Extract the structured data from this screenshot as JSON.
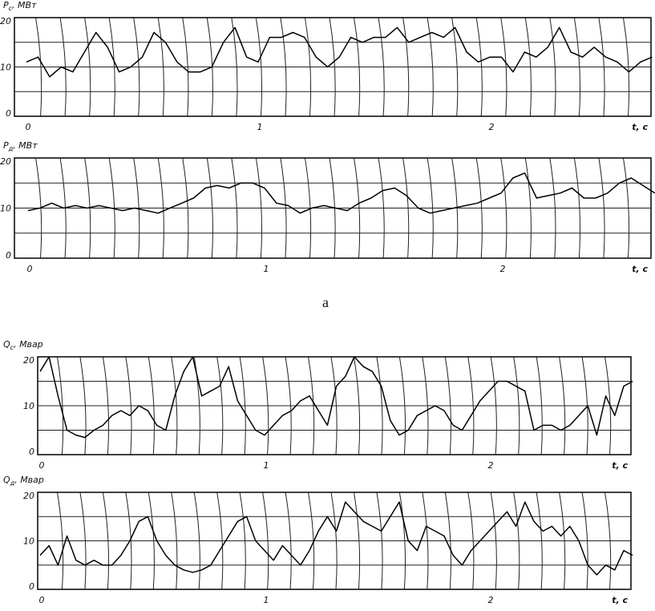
{
  "caption": "а",
  "chart_data": [
    {
      "type": "line",
      "ylabel": "P_c, МВт",
      "ylabel_main": "P",
      "ylabel_sub": "c",
      "ylabel_unit": ", МВт",
      "xlabel": "t, c",
      "yticks": [
        "0",
        "10",
        "20"
      ],
      "xticks": [
        "0",
        "1",
        "2"
      ],
      "ylim": [
        0,
        20
      ],
      "xlim": [
        0,
        2.7
      ],
      "grid": true,
      "t_step": 0.05,
      "values": [
        11,
        12,
        8,
        10,
        9,
        13,
        17,
        14,
        9,
        10,
        12,
        17,
        15,
        11,
        9,
        9,
        10,
        15,
        18,
        12,
        11,
        16,
        16,
        17,
        16,
        12,
        10,
        12,
        16,
        15,
        16,
        16,
        18,
        15,
        16,
        17,
        16,
        18,
        13,
        11,
        12,
        12,
        9,
        13,
        12,
        14,
        18,
        13,
        12,
        14,
        12,
        11,
        9,
        11,
        12
      ]
    },
    {
      "type": "line",
      "ylabel": "P_д, МВт",
      "ylabel_main": "P",
      "ylabel_sub": "д",
      "ylabel_unit": ", МВт",
      "xlabel": "t, c",
      "yticks": [
        "0",
        "10",
        "20"
      ],
      "xticks": [
        "0",
        "1",
        "2"
      ],
      "ylim": [
        0,
        20
      ],
      "xlim": [
        0,
        2.65
      ],
      "grid": true,
      "t_step": 0.05,
      "values": [
        9.5,
        10,
        11,
        10,
        10.5,
        10,
        10.5,
        10,
        9.5,
        10,
        9.5,
        9,
        10,
        11,
        12,
        14,
        14.5,
        14,
        15,
        15,
        14,
        11,
        10.5,
        9,
        10,
        10.5,
        10,
        9.5,
        11,
        12,
        13.5,
        14,
        12.5,
        10,
        9,
        9.5,
        10,
        10.5,
        11,
        12,
        13,
        16,
        17,
        12,
        12.5,
        13,
        14,
        12,
        12,
        13,
        15,
        16,
        14.5,
        13
      ]
    },
    {
      "type": "line",
      "ylabel": "Q_c, Мвар",
      "ylabel_main": "Q",
      "ylabel_sub": "c",
      "ylabel_unit": ", Мвар",
      "xlabel": "t, c",
      "yticks": [
        "0",
        "10",
        "20"
      ],
      "xticks": [
        "0",
        "1",
        "2"
      ],
      "ylim": [
        0,
        20
      ],
      "xlim": [
        0,
        2.63
      ],
      "grid": true,
      "t_step": 0.04,
      "values": [
        17,
        20,
        12,
        5,
        4,
        3.5,
        5,
        6,
        8,
        9,
        8,
        10,
        9,
        6,
        5,
        12,
        17,
        20,
        12,
        13,
        14,
        18,
        11,
        8,
        5,
        4,
        6,
        8,
        9,
        11,
        12,
        9,
        6,
        14,
        16,
        20,
        18,
        17,
        14,
        7,
        4,
        5,
        8,
        9,
        10,
        9,
        6,
        5,
        8,
        11,
        13,
        15,
        15,
        14,
        13,
        5,
        6,
        6,
        5,
        6,
        8,
        10,
        4,
        12,
        8,
        14,
        15
      ]
    },
    {
      "type": "line",
      "ylabel": "Q_д, Мвар",
      "ylabel_main": "Q",
      "ylabel_sub": "д",
      "ylabel_unit": ", Мвар",
      "xlabel": "t, c",
      "yticks": [
        "0",
        "10",
        "20"
      ],
      "xticks": [
        "0",
        "1",
        "2"
      ],
      "ylim": [
        0,
        20
      ],
      "xlim": [
        0,
        2.63
      ],
      "grid": true,
      "t_step": 0.04,
      "values": [
        7,
        9,
        5,
        11,
        6,
        5,
        6,
        5,
        5,
        7,
        10,
        14,
        15,
        10,
        7,
        5,
        4,
        3.5,
        4,
        5,
        8,
        11,
        14,
        15,
        10,
        8,
        6,
        9,
        7,
        5,
        8,
        12,
        15,
        12,
        18,
        16,
        14,
        13,
        12,
        15,
        18,
        10,
        8,
        13,
        12,
        11,
        7,
        5,
        8,
        10,
        12,
        14,
        16,
        13,
        18,
        14,
        12,
        13,
        11,
        13,
        10,
        5,
        3,
        5,
        4,
        8,
        7
      ]
    }
  ]
}
